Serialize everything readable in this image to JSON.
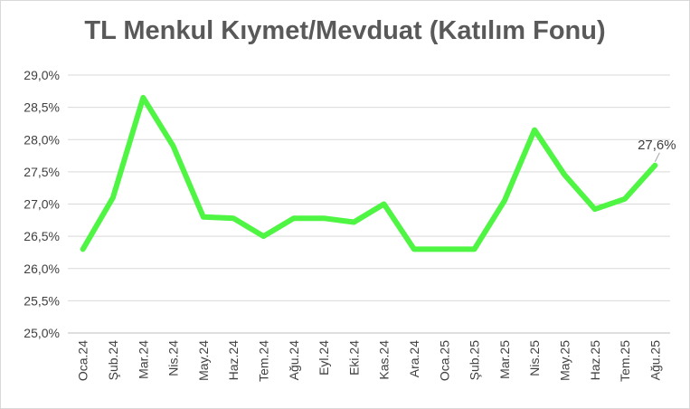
{
  "chart_data": {
    "type": "line",
    "title": "TL Menkul Kıymet/Mevduat (Katılım Fonu)",
    "xlabel": "",
    "ylabel": "",
    "categories": [
      "Oca.24",
      "Şub.24",
      "Mar.24",
      "Nis.24",
      "May.24",
      "Haz.24",
      "Tem.24",
      "Ağu.24",
      "Eyl.24",
      "Eki.24",
      "Kas.24",
      "Ara.24",
      "Oca.25",
      "Şub.25",
      "Mar.25",
      "Nis.25",
      "May.25",
      "Haz.25",
      "Tem.25",
      "Ağu.25"
    ],
    "series": [
      {
        "values": [
          26.3,
          27.1,
          28.65,
          27.9,
          26.8,
          26.78,
          26.5,
          26.78,
          26.78,
          26.72,
          27.0,
          26.3,
          26.3,
          26.3,
          27.05,
          28.15,
          27.45,
          26.92,
          27.08,
          27.6
        ]
      }
    ],
    "ylim": [
      25.0,
      29.0
    ],
    "yticks": [
      "25,0%",
      "25,5%",
      "26,0%",
      "26,5%",
      "27,0%",
      "27,5%",
      "28,0%",
      "28,5%",
      "29,0%"
    ],
    "data_labels": [
      {
        "index": 19,
        "text": "27,6%"
      }
    ],
    "grid": true,
    "line_color": "#4ef542",
    "legend": "none"
  }
}
